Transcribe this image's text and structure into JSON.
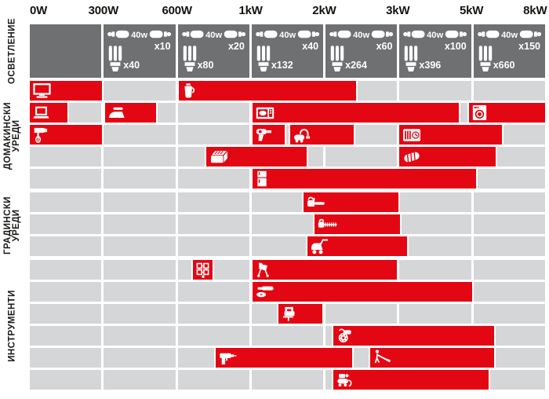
{
  "colors": {
    "red": "#e30613",
    "dark_gray": "#6f7072",
    "light_gray": "#d5d6d8",
    "text": "#1a1a18",
    "background": "#ffffff"
  },
  "chart_data": {
    "type": "bar",
    "orientation": "horizontal-range-bars",
    "x_axis": {
      "tick_labels": [
        "0W",
        "300W",
        "600W",
        "1kW",
        "2kW",
        "3kW",
        "5kW",
        "8kW"
      ],
      "tick_watts": [
        0,
        300,
        600,
        1000,
        2000,
        3000,
        5000,
        8000
      ],
      "scale": "piecewise-linear, equal width per segment",
      "grid": true
    },
    "sections": [
      {
        "id": "lighting",
        "label": "ОСВЕТЛЕНИЕ",
        "type": "legend",
        "cells": [
          {
            "empty": true
          },
          {
            "bulb_label": "40w",
            "bulb_mult": "x10",
            "cfl_mult": "x40"
          },
          {
            "bulb_label": "40w",
            "bulb_mult": "x20",
            "cfl_mult": "x80"
          },
          {
            "bulb_label": "40w",
            "bulb_mult": "x40",
            "cfl_mult": "x132"
          },
          {
            "bulb_label": "40w",
            "bulb_mult": "x60",
            "cfl_mult": "x264"
          },
          {
            "bulb_label": "40w",
            "bulb_mult": "x100",
            "cfl_mult": "x396"
          },
          {
            "bulb_label": "40w",
            "bulb_mult": "x150",
            "cfl_mult": "x660"
          }
        ]
      },
      {
        "id": "household",
        "label": "ДОМАКИНСКИ\nУРЕДИ",
        "rows": [
          [
            {
              "icon": "tv",
              "watt_range": [
                0,
                300
              ]
            },
            {
              "icon": "kettle",
              "watt_range": [
                600,
                2450
              ]
            }
          ],
          [
            {
              "icon": "laptop",
              "watt_range": [
                0,
                160
              ]
            },
            {
              "icon": "iron",
              "watt_range": [
                300,
                520
              ]
            },
            {
              "icon": "microwave",
              "watt_range": [
                1000,
                4700
              ]
            },
            {
              "icon": "washing-machine",
              "watt_range": [
                4900,
                8000
              ]
            }
          ],
          [
            {
              "icon": "hand-mixer",
              "watt_range": [
                0,
                300
              ]
            },
            {
              "icon": "hair-dryer",
              "watt_range": [
                1000,
                1480
              ]
            },
            {
              "icon": "vacuum-cleaner",
              "watt_range": [
                1520,
                2420
              ]
            },
            {
              "icon": "electric-heater",
              "watt_range": [
                3000,
                6300
              ]
            }
          ],
          [
            {
              "icon": "toaster",
              "watt_range": [
                750,
                1780
              ]
            },
            {
              "icon": "grill",
              "watt_range": [
                3000,
                6050
              ]
            }
          ],
          [
            {
              "icon": "fridge",
              "watt_range": [
                1000,
                5250
              ]
            }
          ]
        ]
      },
      {
        "id": "garden",
        "label": "ГРАДИНСКИ\nУРЕДИ",
        "rows": [
          [
            {
              "icon": "chainsaw",
              "watt_range": [
                1700,
                3050
              ]
            }
          ],
          [
            {
              "icon": "hedge-trimmer",
              "watt_range": [
                1850,
                3100
              ]
            }
          ],
          [
            {
              "icon": "lawnmower",
              "watt_range": [
                1750,
                3300
              ]
            }
          ]
        ]
      },
      {
        "id": "tools",
        "label": "ИНСТРУМЕНТИ",
        "rows": [
          [
            {
              "icon": "battery-charger",
              "watt_range": [
                680,
                800
              ]
            },
            {
              "icon": "concrete-mixer",
              "watt_range": [
                1000,
                3020
              ]
            }
          ],
          [
            {
              "icon": "angle-grinder",
              "watt_range": [
                1000,
                5100
              ]
            }
          ],
          [
            {
              "icon": "jigsaw",
              "watt_range": [
                1360,
                2000
              ]
            }
          ],
          [
            {
              "icon": "circular-saw",
              "watt_range": [
                2100,
                6000
              ]
            }
          ],
          [
            {
              "icon": "drill",
              "watt_range": [
                800,
                2400
              ]
            },
            {
              "icon": "string-trimmer",
              "watt_range": [
                2600,
                6000
              ]
            }
          ],
          [
            {
              "icon": "air-compressor",
              "watt_range": [
                2100,
                5750
              ]
            }
          ]
        ]
      }
    ]
  }
}
